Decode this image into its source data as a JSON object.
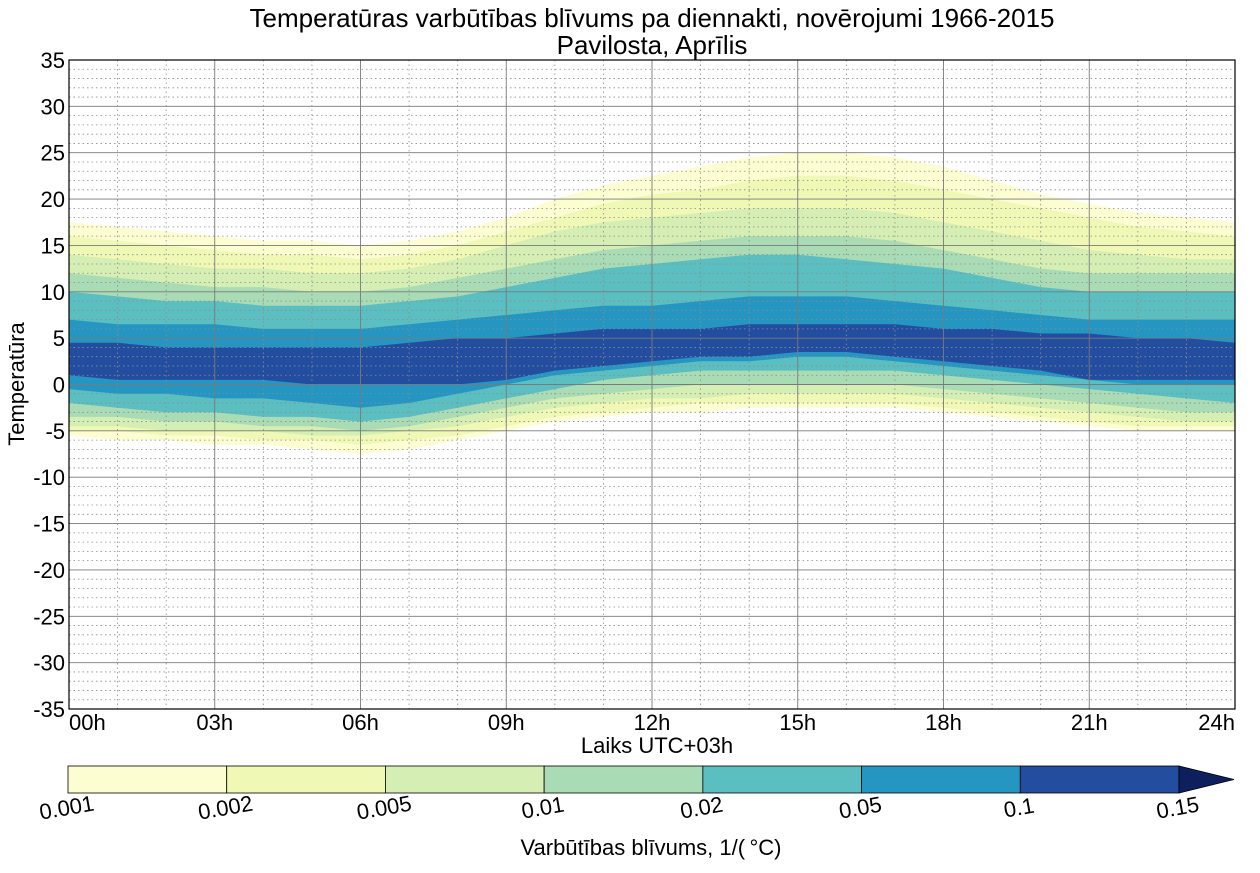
{
  "chart_data": {
    "type": "contourf",
    "title": "Temperatūras varbūtības blīvums pa diennakti, novērojumi 1966-2015",
    "subtitle": "Pavilosta, Aprīlis",
    "xlabel": "Laiks UTC+03h",
    "ylabel": "Temperatūra",
    "xlim": [
      0,
      24
    ],
    "ylim": [
      -35,
      35
    ],
    "x_ticks": [
      0,
      3,
      6,
      9,
      12,
      15,
      18,
      21,
      24
    ],
    "x_tick_labels": [
      "00h",
      "03h",
      "06h",
      "09h",
      "12h",
      "15h",
      "18h",
      "21h",
      "24h"
    ],
    "y_ticks": [
      -35,
      -30,
      -25,
      -20,
      -15,
      -10,
      -5,
      0,
      5,
      10,
      15,
      20,
      25,
      30,
      35
    ],
    "y_tick_labels": [
      "-35",
      "-30",
      "-25",
      "-20",
      "-15",
      "-10",
      "-5",
      "0",
      "5",
      "10",
      "15",
      "20",
      "25",
      "30",
      "35"
    ],
    "grid": true,
    "colorbar": {
      "label": "Varbūtības blīvums, 1/( °C)",
      "levels": [
        0.001,
        0.002,
        0.005,
        0.01,
        0.02,
        0.05,
        0.1,
        0.15
      ],
      "level_labels": [
        "0.001",
        "0.002",
        "0.005",
        "0.01",
        "0.02",
        "0.05",
        "0.1",
        "0.15"
      ],
      "colors": [
        "#fcfdd0",
        "#eff8b5",
        "#d4eeb3",
        "#a9dcb5",
        "#5bbec1",
        "#2596c1",
        "#234ea0",
        "#0d1f5c"
      ],
      "extend": "max"
    },
    "time_hours": [
      0,
      1,
      2,
      3,
      4,
      5,
      6,
      7,
      8,
      9,
      10,
      11,
      12,
      13,
      14,
      15,
      16,
      17,
      18,
      19,
      20,
      21,
      22,
      23,
      24
    ],
    "bands": [
      {
        "level": 0.001,
        "upper": [
          17.5,
          17,
          16.5,
          16,
          15.5,
          15.5,
          15,
          15.5,
          16.5,
          18,
          20,
          21.5,
          22.5,
          23.5,
          24.5,
          25,
          25,
          24.5,
          23.5,
          22,
          20.5,
          19.5,
          18.5,
          18,
          17.5
        ],
        "lower": [
          -5.5,
          -6,
          -6,
          -6.5,
          -6.5,
          -7,
          -7.5,
          -7,
          -6,
          -5,
          -4,
          -3.5,
          -3,
          -3,
          -2.5,
          -2.5,
          -2.5,
          -2.5,
          -3,
          -3.5,
          -4,
          -4.5,
          -5,
          -5,
          -5
        ]
      },
      {
        "level": 0.002,
        "upper": [
          16,
          15.5,
          15,
          14.5,
          14,
          14,
          13.5,
          14,
          15,
          16.5,
          18,
          19.5,
          20.5,
          21,
          22,
          22.5,
          22.5,
          22,
          21,
          20,
          19,
          18,
          17,
          16.5,
          16
        ],
        "lower": [
          -5,
          -5,
          -5.5,
          -5.5,
          -6,
          -6,
          -6.5,
          -6,
          -5.5,
          -4.5,
          -3.5,
          -3,
          -2.5,
          -2,
          -2,
          -2,
          -2,
          -2,
          -2.5,
          -3,
          -3.5,
          -4,
          -4.5,
          -4.5,
          -4.5
        ]
      },
      {
        "level": 0.005,
        "upper": [
          14,
          13.5,
          13,
          12.5,
          12.5,
          12,
          12,
          12.5,
          13.5,
          15,
          16.5,
          17.5,
          18,
          18.5,
          19,
          19,
          19,
          18.5,
          17.5,
          16.5,
          15.5,
          14.5,
          14,
          13.5,
          13.5
        ],
        "lower": [
          -4.5,
          -4.5,
          -5,
          -5,
          -5,
          -5.5,
          -5.5,
          -5,
          -4.5,
          -3.5,
          -2.5,
          -2,
          -1.5,
          -1.5,
          -1,
          -1,
          -1,
          -1,
          -1.5,
          -2,
          -2.5,
          -3,
          -3.5,
          -4,
          -4
        ]
      },
      {
        "level": 0.01,
        "upper": [
          12,
          11.5,
          11,
          10.5,
          10.5,
          10,
          10,
          10.5,
          11.5,
          12.5,
          13.5,
          14.5,
          15,
          15.5,
          16,
          16,
          16,
          15.5,
          14.5,
          13.5,
          12.5,
          12,
          12,
          12,
          12
        ],
        "lower": [
          -3.5,
          -3.5,
          -4,
          -4,
          -4.5,
          -4.5,
          -5,
          -4.5,
          -3.5,
          -2.5,
          -1.5,
          -1,
          -0.5,
          0,
          0,
          0,
          0,
          0,
          -0.5,
          -1,
          -1.5,
          -2,
          -2.5,
          -3,
          -3
        ]
      },
      {
        "level": 0.02,
        "upper": [
          10,
          9.5,
          9,
          9,
          8.5,
          8.5,
          8.5,
          9,
          9.5,
          10.5,
          11.5,
          12.5,
          13,
          13.5,
          14,
          14,
          13.5,
          13,
          12.5,
          11.5,
          10.5,
          10,
          10,
          10,
          10
        ],
        "lower": [
          -2,
          -2.5,
          -3,
          -3,
          -3.5,
          -3.5,
          -4,
          -3.5,
          -2.5,
          -1.5,
          -0.5,
          0.5,
          1,
          1.5,
          1.5,
          1.5,
          1.5,
          1.5,
          1,
          0.5,
          0,
          -0.5,
          -1,
          -1.5,
          -2
        ]
      },
      {
        "level": 0.05,
        "upper": [
          7,
          6.5,
          6.5,
          6.5,
          6,
          6,
          6,
          6.5,
          7,
          7.5,
          8,
          8.5,
          8.5,
          9,
          9.5,
          9.5,
          9.5,
          9,
          8.5,
          8,
          7.5,
          7,
          7,
          7,
          7
        ],
        "lower": [
          -0.5,
          -1,
          -1,
          -1.5,
          -1.5,
          -2,
          -2.5,
          -2,
          -1,
          0,
          1,
          1.5,
          2,
          2.5,
          2.5,
          3,
          3,
          2.5,
          2,
          1.5,
          1,
          0.5,
          0,
          0,
          0
        ]
      },
      {
        "level": 0.1,
        "upper": [
          4.5,
          4.5,
          4,
          4,
          4,
          4,
          4,
          4.5,
          5,
          5,
          5.5,
          6,
          6,
          6,
          6.5,
          6.5,
          6.5,
          6.5,
          6,
          6,
          5.5,
          5.5,
          5,
          5,
          4.5
        ],
        "lower": [
          1,
          0.5,
          0.5,
          0.5,
          0.5,
          0,
          0,
          0,
          0,
          0.5,
          1.5,
          2,
          2.5,
          3,
          3,
          3.5,
          3.5,
          3,
          2.5,
          2,
          1.5,
          0.5,
          0.5,
          0.5,
          0.5
        ]
      }
    ]
  }
}
